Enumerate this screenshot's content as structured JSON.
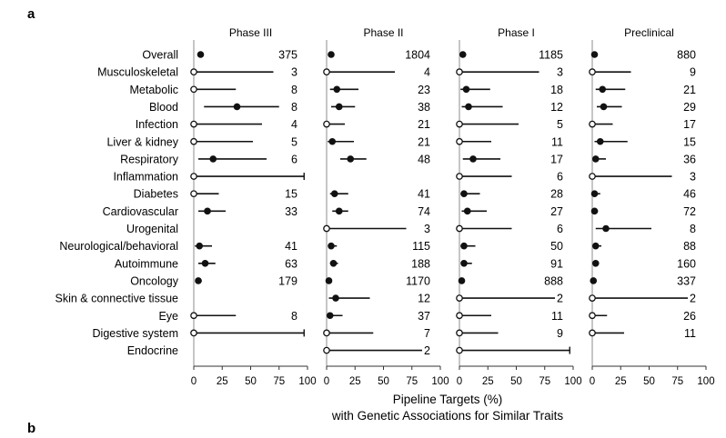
{
  "panel_letters": [
    "a",
    "b"
  ],
  "chart_data": {
    "type": "dot-interval",
    "xlabel_line1": "Pipeline Targets (%)",
    "xlabel_line2": "with Genetic Associations for Similar Traits",
    "xlim": [
      0,
      100
    ],
    "xticks": [
      0,
      25,
      50,
      75,
      100
    ],
    "categories": [
      "Overall",
      "Musculoskeletal",
      "Metabolic",
      "Blood",
      "Infection",
      "Liver & kidney",
      "Respiratory",
      "Inflammation",
      "Diabetes",
      "Cardiovascular",
      "Urogenital",
      "Neurological/behavioral",
      "Autoimmune",
      "Oncology",
      "Skin & connective tissue",
      "Eye",
      "Digestive system",
      "Endocrine"
    ],
    "panels": [
      {
        "title": "Phase III",
        "points": [
          {
            "category": "Overall",
            "value": 6,
            "low": 5,
            "high": 8,
            "n": "375"
          },
          {
            "category": "Musculoskeletal",
            "value": 0,
            "low": 0,
            "high": 70,
            "n": "3"
          },
          {
            "category": "Metabolic",
            "value": 0,
            "low": 0,
            "high": 37,
            "n": "8"
          },
          {
            "category": "Blood",
            "value": 38,
            "low": 9,
            "high": 75,
            "n": "8"
          },
          {
            "category": "Infection",
            "value": 0,
            "low": 0,
            "high": 60,
            "n": "4"
          },
          {
            "category": "Liver & kidney",
            "value": 0,
            "low": 0,
            "high": 52,
            "n": "5"
          },
          {
            "category": "Respiratory",
            "value": 17,
            "low": 4,
            "high": 64,
            "n": "6"
          },
          {
            "category": "Inflammation",
            "value": 0,
            "low": 0,
            "high": 97,
            "n": ""
          },
          {
            "category": "Diabetes",
            "value": 0,
            "low": 0,
            "high": 22,
            "n": "15"
          },
          {
            "category": "Cardiovascular",
            "value": 12,
            "low": 4,
            "high": 28,
            "n": "33"
          },
          {
            "category": "Urogenital",
            "value": null,
            "low": null,
            "high": null,
            "n": ""
          },
          {
            "category": "Neurological/behavioral",
            "value": 5,
            "low": 1,
            "high": 16,
            "n": "41"
          },
          {
            "category": "Autoimmune",
            "value": 10,
            "low": 4,
            "high": 19,
            "n": "63"
          },
          {
            "category": "Oncology",
            "value": 4,
            "low": 2,
            "high": 7,
            "n": "179"
          },
          {
            "category": "Skin & connective tissue",
            "value": null,
            "low": null,
            "high": null,
            "n": ""
          },
          {
            "category": "Eye",
            "value": 0,
            "low": 0,
            "high": 37,
            "n": "8"
          },
          {
            "category": "Digestive system",
            "value": 0,
            "low": 0,
            "high": 97,
            "n": ""
          },
          {
            "category": "Endocrine",
            "value": null,
            "low": null,
            "high": null,
            "n": ""
          }
        ]
      },
      {
        "title": "Phase II",
        "points": [
          {
            "category": "Overall",
            "value": 4,
            "low": 3,
            "high": 5,
            "n": "1804"
          },
          {
            "category": "Musculoskeletal",
            "value": 0,
            "low": 0,
            "high": 60,
            "n": "4"
          },
          {
            "category": "Metabolic",
            "value": 9,
            "low": 3,
            "high": 28,
            "n": "23"
          },
          {
            "category": "Blood",
            "value": 11,
            "low": 4,
            "high": 25,
            "n": "38"
          },
          {
            "category": "Infection",
            "value": 0,
            "low": 0,
            "high": 16,
            "n": "21"
          },
          {
            "category": "Liver & kidney",
            "value": 5,
            "low": 1,
            "high": 24,
            "n": "21"
          },
          {
            "category": "Respiratory",
            "value": 21,
            "low": 12,
            "high": 35,
            "n": "48"
          },
          {
            "category": "Inflammation",
            "value": null,
            "low": null,
            "high": null,
            "n": ""
          },
          {
            "category": "Diabetes",
            "value": 7,
            "low": 3,
            "high": 19,
            "n": "41"
          },
          {
            "category": "Cardiovascular",
            "value": 11,
            "low": 5,
            "high": 19,
            "n": "74"
          },
          {
            "category": "Urogenital",
            "value": 0,
            "low": 0,
            "high": 70,
            "n": "3"
          },
          {
            "category": "Neurological/behavioral",
            "value": 4,
            "low": 2,
            "high": 9,
            "n": "115"
          },
          {
            "category": "Autoimmune",
            "value": 6,
            "low": 3,
            "high": 10,
            "n": "188"
          },
          {
            "category": "Oncology",
            "value": 2,
            "low": 1,
            "high": 3,
            "n": "1170"
          },
          {
            "category": "Skin & connective tissue",
            "value": 8,
            "low": 2,
            "high": 38,
            "n": "12"
          },
          {
            "category": "Eye",
            "value": 3,
            "low": 1,
            "high": 14,
            "n": "37"
          },
          {
            "category": "Digestive system",
            "value": 0,
            "low": 0,
            "high": 41,
            "n": "7"
          },
          {
            "category": "Endocrine",
            "value": 0,
            "low": 0,
            "high": 84,
            "n": "2"
          }
        ]
      },
      {
        "title": "Phase I",
        "points": [
          {
            "category": "Overall",
            "value": 3,
            "low": 2,
            "high": 4,
            "n": "1185"
          },
          {
            "category": "Musculoskeletal",
            "value": 0,
            "low": 0,
            "high": 70,
            "n": "3"
          },
          {
            "category": "Metabolic",
            "value": 6,
            "low": 1,
            "high": 27,
            "n": "18"
          },
          {
            "category": "Blood",
            "value": 8,
            "low": 2,
            "high": 38,
            "n": "12"
          },
          {
            "category": "Infection",
            "value": 0,
            "low": 0,
            "high": 52,
            "n": "5"
          },
          {
            "category": "Liver & kidney",
            "value": 0,
            "low": 0,
            "high": 28,
            "n": "11"
          },
          {
            "category": "Respiratory",
            "value": 12,
            "low": 3,
            "high": 36,
            "n": "17"
          },
          {
            "category": "Inflammation",
            "value": 0,
            "low": 0,
            "high": 46,
            "n": "6"
          },
          {
            "category": "Diabetes",
            "value": 4,
            "low": 1,
            "high": 18,
            "n": "28"
          },
          {
            "category": "Cardiovascular",
            "value": 7,
            "low": 2,
            "high": 24,
            "n": "27"
          },
          {
            "category": "Urogenital",
            "value": 0,
            "low": 0,
            "high": 46,
            "n": "6"
          },
          {
            "category": "Neurological/behavioral",
            "value": 4,
            "low": 1,
            "high": 14,
            "n": "50"
          },
          {
            "category": "Autoimmune",
            "value": 4,
            "low": 2,
            "high": 11,
            "n": "91"
          },
          {
            "category": "Oncology",
            "value": 2,
            "low": 1,
            "high": 3,
            "n": "888"
          },
          {
            "category": "Skin & connective tissue",
            "value": 0,
            "low": 0,
            "high": 84,
            "n": "2"
          },
          {
            "category": "Eye",
            "value": 0,
            "low": 0,
            "high": 28,
            "n": "11"
          },
          {
            "category": "Digestive system",
            "value": 0,
            "low": 0,
            "high": 34,
            "n": "9"
          },
          {
            "category": "Endocrine",
            "value": 0,
            "low": 0,
            "high": 97,
            "n": ""
          }
        ]
      },
      {
        "title": "Preclinical",
        "points": [
          {
            "category": "Overall",
            "value": 2,
            "low": 1,
            "high": 3,
            "n": "880"
          },
          {
            "category": "Musculoskeletal",
            "value": 0,
            "low": 0,
            "high": 34,
            "n": "9"
          },
          {
            "category": "Metabolic",
            "value": 9,
            "low": 3,
            "high": 29,
            "n": "21"
          },
          {
            "category": "Blood",
            "value": 10,
            "low": 4,
            "high": 26,
            "n": "29"
          },
          {
            "category": "Infection",
            "value": 0,
            "low": 0,
            "high": 18,
            "n": "17"
          },
          {
            "category": "Liver & kidney",
            "value": 7,
            "low": 2,
            "high": 31,
            "n": "15"
          },
          {
            "category": "Respiratory",
            "value": 3,
            "low": 1,
            "high": 12,
            "n": "36"
          },
          {
            "category": "Inflammation",
            "value": 0,
            "low": 0,
            "high": 70,
            "n": "3"
          },
          {
            "category": "Diabetes",
            "value": 2,
            "low": 1,
            "high": 7,
            "n": "46"
          },
          {
            "category": "Cardiovascular",
            "value": 2,
            "low": 1,
            "high": 5,
            "n": "72"
          },
          {
            "category": "Urogenital",
            "value": 12,
            "low": 3,
            "high": 52,
            "n": "8"
          },
          {
            "category": "Neurological/behavioral",
            "value": 3,
            "low": 1,
            "high": 8,
            "n": "88"
          },
          {
            "category": "Autoimmune",
            "value": 3,
            "low": 1,
            "high": 6,
            "n": "160"
          },
          {
            "category": "Oncology",
            "value": 1,
            "low": 0,
            "high": 2,
            "n": "337"
          },
          {
            "category": "Skin & connective tissue",
            "value": 0,
            "low": 0,
            "high": 84,
            "n": "2"
          },
          {
            "category": "Eye",
            "value": 0,
            "low": 0,
            "high": 13,
            "n": "26"
          },
          {
            "category": "Digestive system",
            "value": 0,
            "low": 0,
            "high": 28,
            "n": "11"
          },
          {
            "category": "Endocrine",
            "value": null,
            "low": null,
            "high": null,
            "n": ""
          }
        ]
      }
    ]
  }
}
